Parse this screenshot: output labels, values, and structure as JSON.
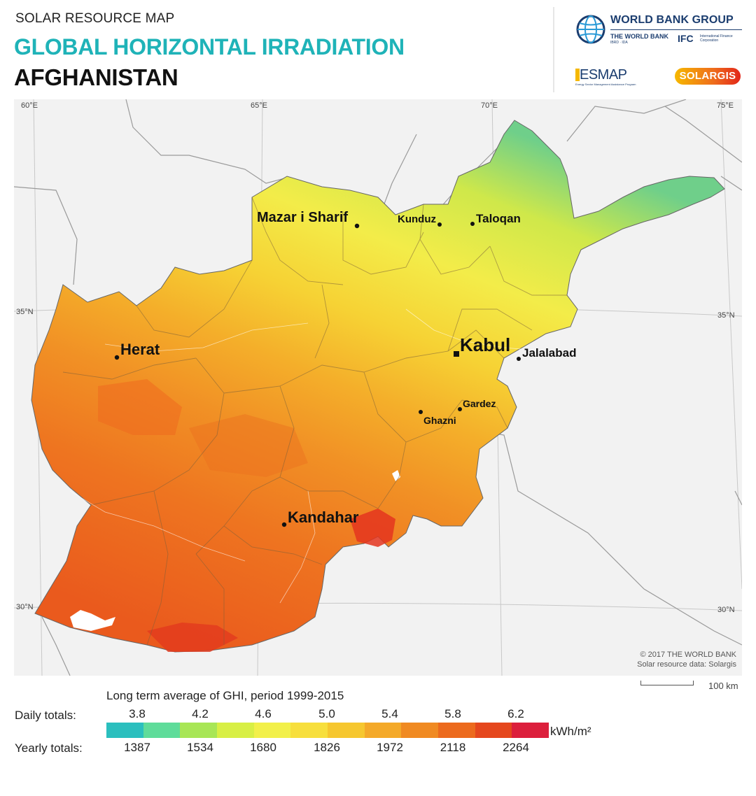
{
  "header": {
    "supertitle": "SOLAR RESOURCE MAP",
    "title": "GLOBAL HORIZONTAL IRRADIATION",
    "country": "AFGHANISTAN"
  },
  "logos": {
    "wbg_name": "WORLD BANK GROUP",
    "world_bank": "THE WORLD BANK",
    "world_bank_sub": "IBRD · IDA",
    "ifc": "IFC",
    "ifc_sub": "International Finance Corporation",
    "esmap": "ESMAP",
    "esmap_sub": "Energy Sector Management Assistance Program",
    "solargis": "SOLARGIS"
  },
  "map": {
    "coordinates": {
      "lon_60": "60°E",
      "lon_65": "65°E",
      "lon_70": "70°E",
      "lon_75": "75°E",
      "lat_35_left": "35°N",
      "lat_35_right": "35°N",
      "lat_30_left": "30°N",
      "lat_30_right": "30°N"
    },
    "cities": [
      {
        "name": "Mazar i Sharif",
        "size": "medium"
      },
      {
        "name": "Kunduz",
        "size": "small"
      },
      {
        "name": "Taloqan",
        "size": "small"
      },
      {
        "name": "Herat",
        "size": "medium"
      },
      {
        "name": "Kabul",
        "size": "large"
      },
      {
        "name": "Jalalabad",
        "size": "small"
      },
      {
        "name": "Gardez",
        "size": "small"
      },
      {
        "name": "Ghazni",
        "size": "small"
      },
      {
        "name": "Kandahar",
        "size": "medium"
      }
    ],
    "copyright_line1": "© 2017 THE WORLD BANK",
    "copyright_line2": "Solar resource data: Solargis",
    "scale_label": "100 km"
  },
  "legend": {
    "title": "Long term average of GHI, period 1999-2015",
    "daily_label": "Daily totals:",
    "yearly_label": "Yearly totals:",
    "unit": "kWh/m²",
    "daily_ticks": [
      "3.8",
      "4.2",
      "4.6",
      "5.0",
      "5.4",
      "5.8",
      "6.2"
    ],
    "yearly_ticks": [
      "1387",
      "1534",
      "1680",
      "1826",
      "1972",
      "2118",
      "2264"
    ],
    "colors": [
      "#2bbfbe",
      "#5fdc9a",
      "#a8e656",
      "#d8ef45",
      "#f2f04a",
      "#f7df3d",
      "#f6c72f",
      "#f4a929",
      "#f08a22",
      "#ec6a1d",
      "#e5471d",
      "#dc1f3c"
    ]
  }
}
